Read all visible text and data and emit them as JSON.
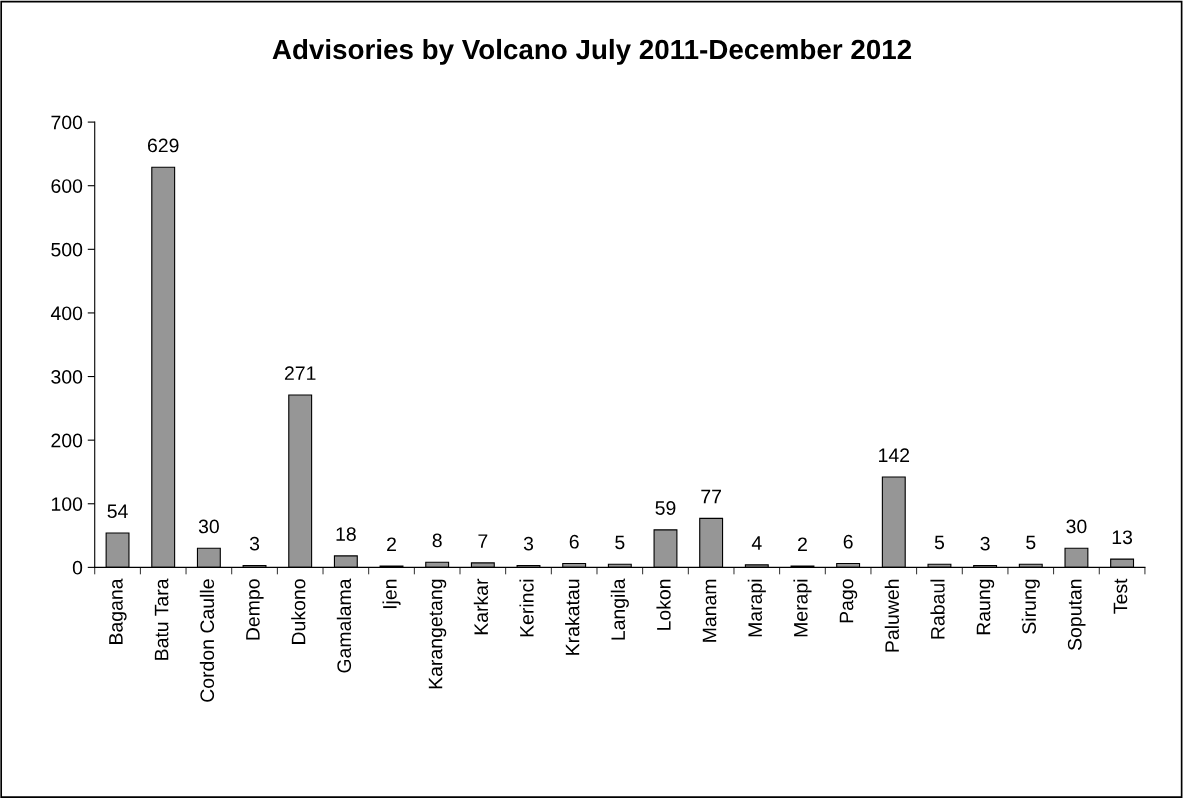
{
  "chart_data": {
    "type": "bar",
    "title": "Advisories by Volcano July 2011-December 2012",
    "categories": [
      "Bagana",
      "Batu Tara",
      "Cordon Caulle",
      "Dempo",
      "Dukono",
      "Gamalama",
      "Ijen",
      "Karangetang",
      "Karkar",
      "Kerinci",
      "Krakatau",
      "Langila",
      "Lokon",
      "Manam",
      "Marapi",
      "Merapi",
      "Pago",
      "Paluweh",
      "Rabaul",
      "Raung",
      "Sirung",
      "Soputan",
      "Test"
    ],
    "values": [
      54,
      629,
      30,
      3,
      271,
      18,
      2,
      8,
      7,
      3,
      6,
      5,
      59,
      77,
      4,
      2,
      6,
      142,
      5,
      3,
      5,
      30,
      13
    ],
    "color": "#969696",
    "ylim": [
      0,
      700
    ],
    "yticks": [
      0,
      100,
      200,
      300,
      400,
      500,
      600,
      700
    ],
    "data_labels": true,
    "grid": false
  }
}
